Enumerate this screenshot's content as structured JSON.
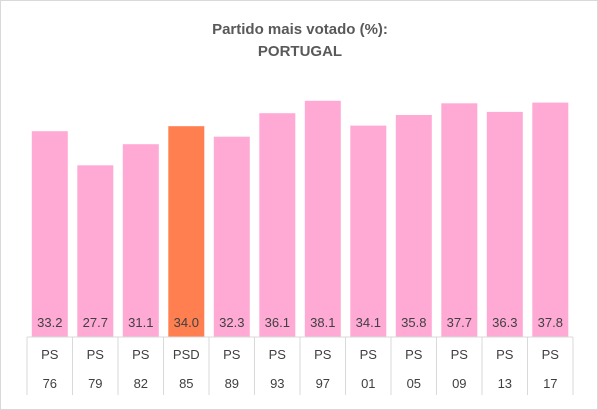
{
  "chart_data": {
    "type": "bar",
    "title": "Partido mais votado (%):",
    "subtitle": "PORTUGAL",
    "categories": [
      {
        "party": "PS",
        "year": "76"
      },
      {
        "party": "PS",
        "year": "79"
      },
      {
        "party": "PS",
        "year": "82"
      },
      {
        "party": "PSD",
        "year": "85"
      },
      {
        "party": "PS",
        "year": "89"
      },
      {
        "party": "PS",
        "year": "93"
      },
      {
        "party": "PS",
        "year": "97"
      },
      {
        "party": "PS",
        "year": "01"
      },
      {
        "party": "PS",
        "year": "05"
      },
      {
        "party": "PS",
        "year": "09"
      },
      {
        "party": "PS",
        "year": "13"
      },
      {
        "party": "PS",
        "year": "17"
      }
    ],
    "values": [
      33.2,
      27.7,
      31.1,
      34.0,
      32.3,
      36.1,
      38.1,
      34.1,
      35.8,
      37.7,
      36.3,
      37.8
    ],
    "value_labels": [
      "33.2",
      "27.7",
      "31.1",
      "34.0",
      "32.3",
      "36.1",
      "38.1",
      "34.1",
      "35.8",
      "37.7",
      "36.3",
      "37.8"
    ],
    "ylim": [
      0,
      40
    ],
    "grid": false,
    "legend": "none",
    "colors": {
      "PS": "#ffaad4",
      "PSD": "#ff7f50",
      "label_text": "#404040",
      "table_border": "#d9d9d9"
    }
  }
}
